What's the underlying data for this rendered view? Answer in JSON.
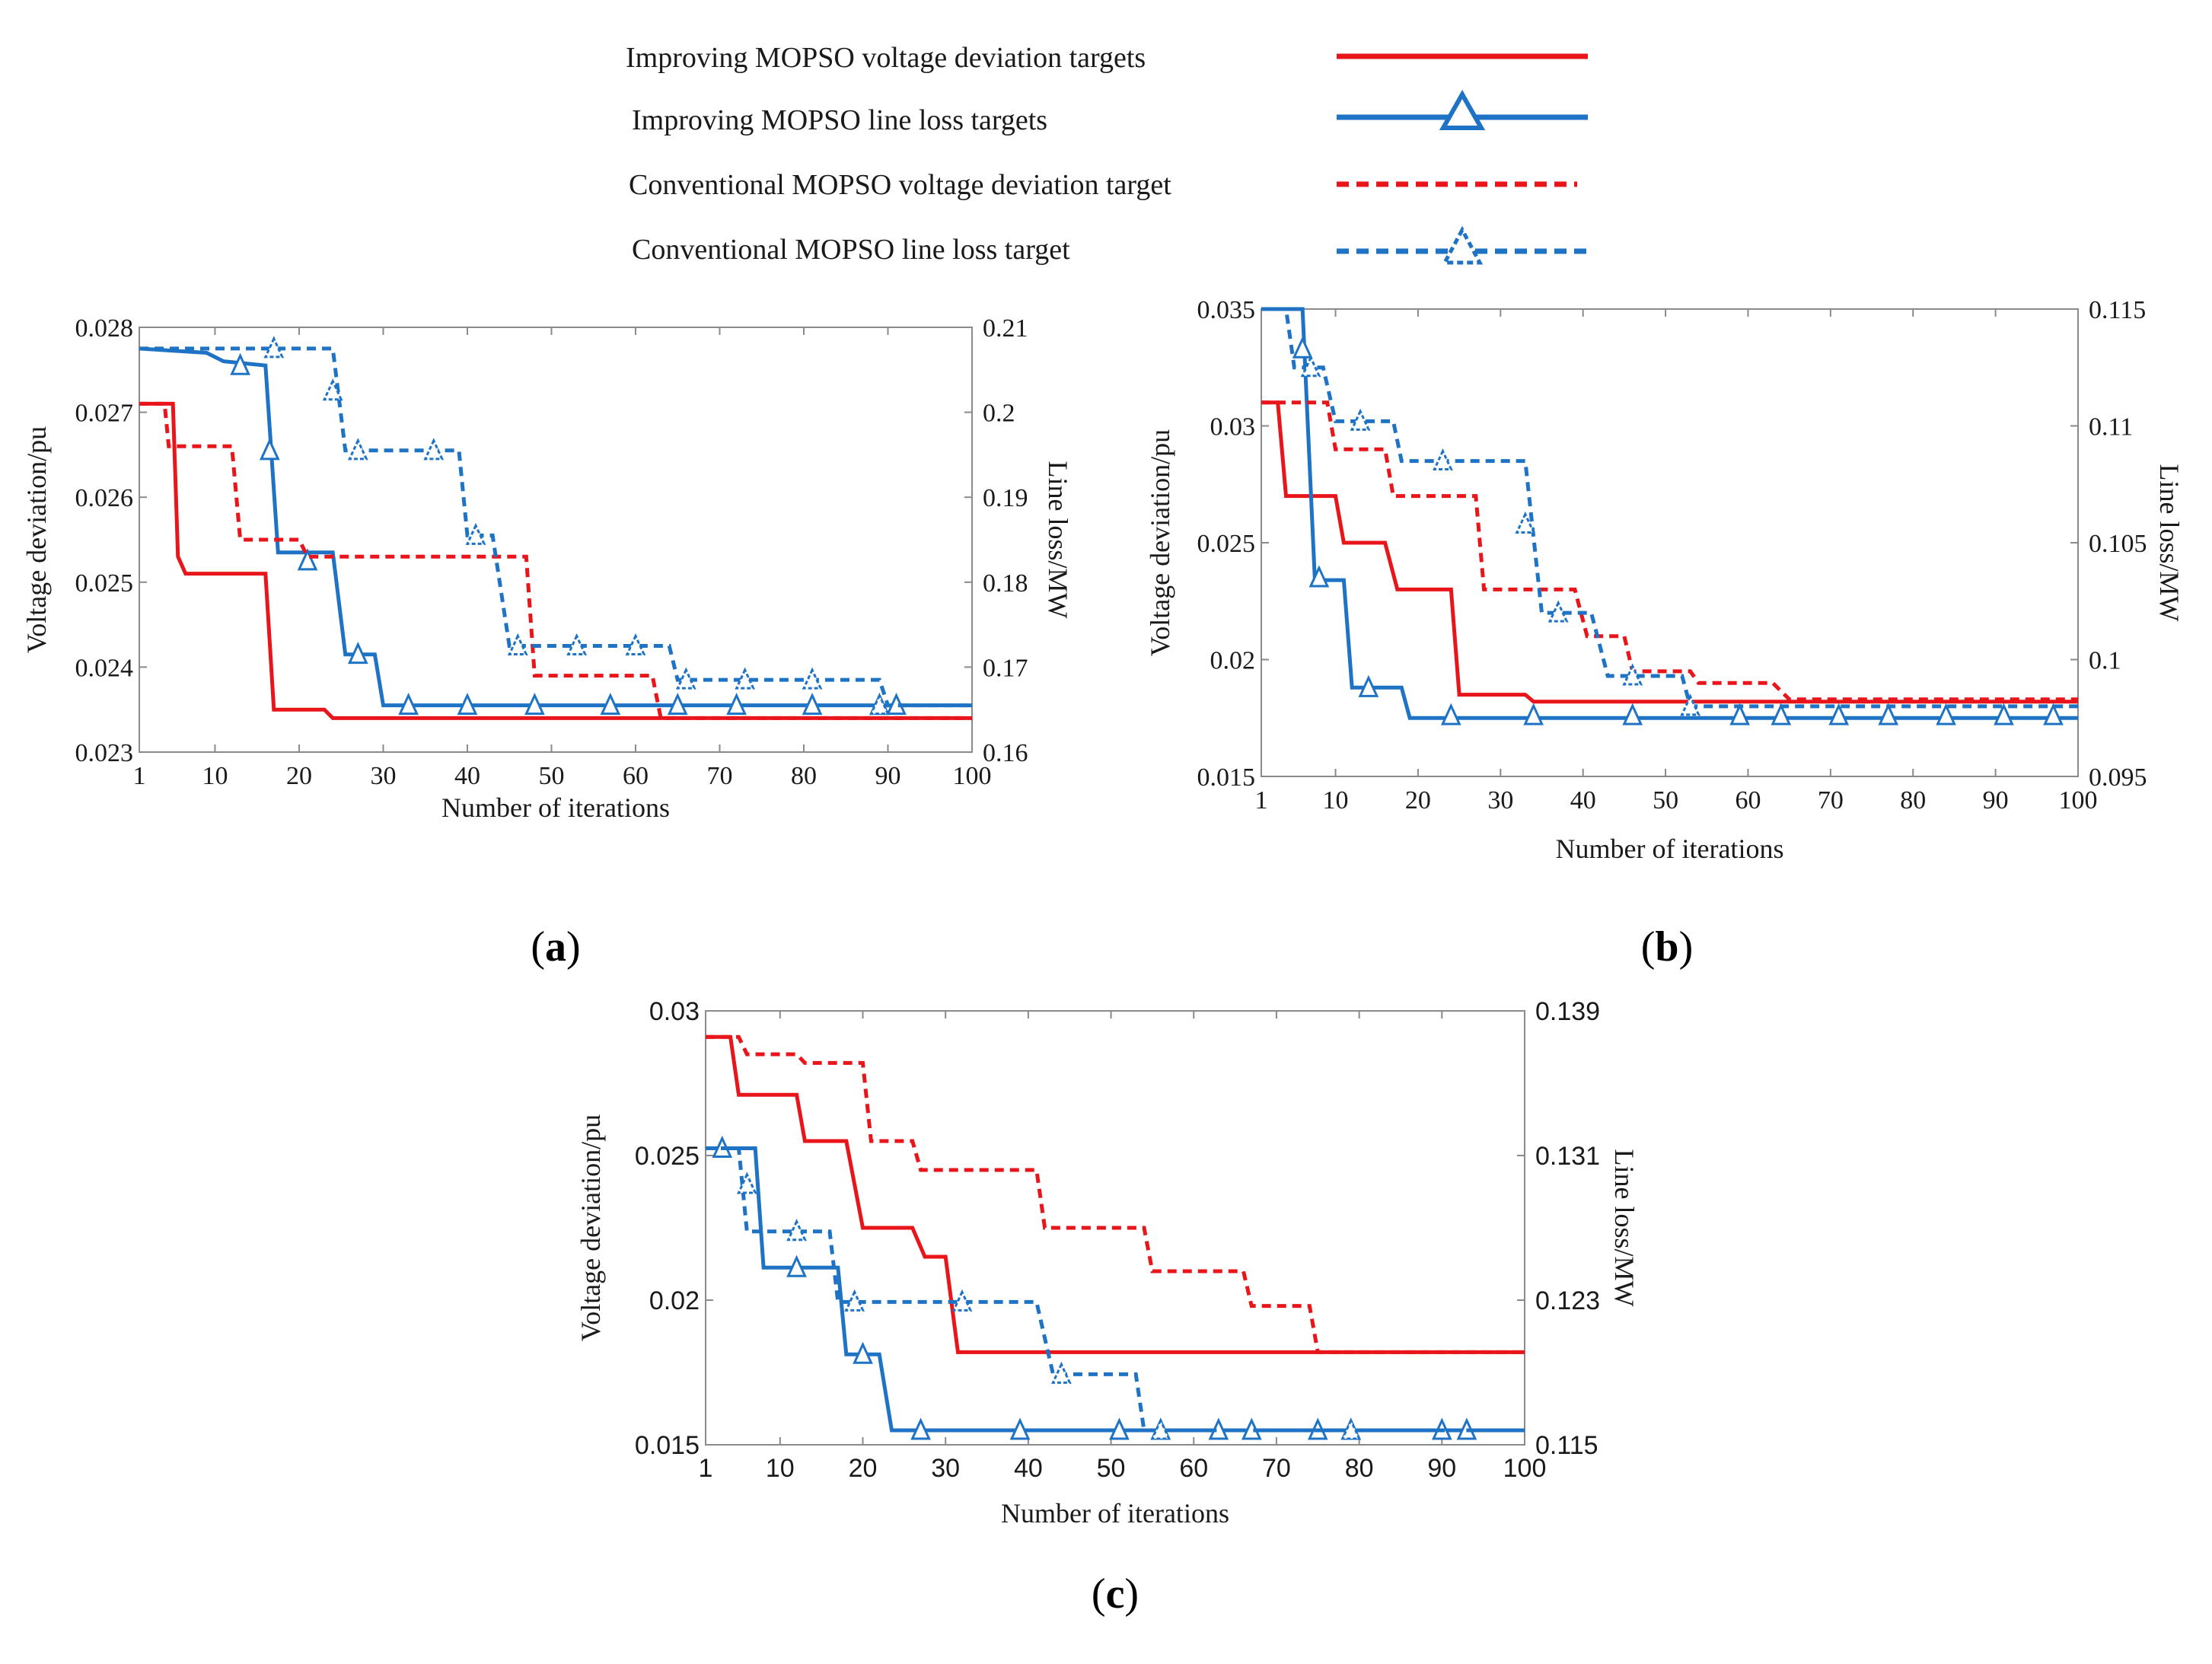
{
  "legend": [
    {
      "label": "Improving MOPSO voltage deviation targets",
      "color": "#e8151b",
      "dash": false,
      "marker": false
    },
    {
      "label": "Improving MOPSO line loss targets",
      "color": "#1f73c4",
      "dash": false,
      "marker": true
    },
    {
      "label": "Conventional MOPSO voltage deviation target",
      "color": "#e8151b",
      "dash": true,
      "marker": false
    },
    {
      "label": "Conventional MOPSO line loss target",
      "color": "#1f73c4",
      "dash": true,
      "marker": true
    }
  ],
  "chart_data": [
    {
      "type": "line",
      "panel": "(a)",
      "panel_letter": "a",
      "xlabel": "Number of iterations",
      "ylabel": "Voltage deviation/pu",
      "y2label": "Line loss/MW",
      "xlim": [
        1,
        100
      ],
      "ylim": [
        0.023,
        0.028
      ],
      "y2lim": [
        0.16,
        0.21
      ],
      "xticks": [
        "1",
        "10",
        "20",
        "30",
        "40",
        "50",
        "60",
        "70",
        "80",
        "90",
        "100"
      ],
      "yticks": [
        "0.023",
        "0.024",
        "0.025",
        "0.026",
        "0.027",
        "0.028"
      ],
      "y2ticks": [
        "0.16",
        "0.17",
        "0.18",
        "0.19",
        "0.2",
        "0.21"
      ],
      "series": [
        {
          "name": "Improving MOPSO voltage deviation targets",
          "axis": "left",
          "color": "#e8151b",
          "dash": false,
          "marker": false,
          "points": [
            [
              1,
              0.0271
            ],
            [
              5,
              0.0271
            ],
            [
              5.6,
              0.0253
            ],
            [
              6.5,
              0.0251
            ],
            [
              16,
              0.0251
            ],
            [
              17,
              0.0235
            ],
            [
              23,
              0.0235
            ],
            [
              24,
              0.0234
            ],
            [
              100,
              0.0234
            ]
          ]
        },
        {
          "name": "Improving MOPSO line loss targets",
          "axis": "right",
          "color": "#1f73c4",
          "dash": false,
          "marker": true,
          "points": [
            [
              1,
              0.2075
            ],
            [
              9,
              0.207
            ],
            [
              11,
              0.206
            ],
            [
              16,
              0.2055
            ],
            [
              17.5,
              0.1835
            ],
            [
              24,
              0.1835
            ],
            [
              25.5,
              0.1715
            ],
            [
              29,
              0.1715
            ],
            [
              30,
              0.1655
            ],
            [
              100,
              0.1655
            ]
          ],
          "markers": [
            [
              13,
              0.2055
            ],
            [
              16.5,
              0.1955
            ],
            [
              21,
              0.1825
            ],
            [
              27,
              0.1715
            ],
            [
              33,
              0.1655
            ],
            [
              40,
              0.1655
            ],
            [
              48,
              0.1655
            ],
            [
              57,
              0.1655
            ],
            [
              65,
              0.1655
            ],
            [
              72,
              0.1655
            ],
            [
              81,
              0.1655
            ],
            [
              89,
              0.1655
            ],
            [
              91,
              0.1655
            ]
          ]
        },
        {
          "name": "Conventional MOPSO voltage deviation target",
          "axis": "left",
          "color": "#e8151b",
          "dash": true,
          "marker": false,
          "points": [
            [
              1,
              0.0271
            ],
            [
              4,
              0.0271
            ],
            [
              4.5,
              0.0266
            ],
            [
              12,
              0.0266
            ],
            [
              13,
              0.0255
            ],
            [
              20,
              0.0255
            ],
            [
              21,
              0.0253
            ],
            [
              47,
              0.0253
            ],
            [
              48,
              0.0239
            ],
            [
              62,
              0.0239
            ],
            [
              63,
              0.0234
            ],
            [
              100,
              0.0234
            ]
          ]
        },
        {
          "name": "Conventional MOPSO line loss target",
          "axis": "right",
          "color": "#1f73c4",
          "dash": true,
          "marker": true,
          "points": [
            [
              1,
              0.2075
            ],
            [
              24,
              0.2075
            ],
            [
              25.5,
              0.1955
            ],
            [
              39,
              0.1955
            ],
            [
              40,
              0.1855
            ],
            [
              43,
              0.1855
            ],
            [
              45,
              0.1725
            ],
            [
              64,
              0.1725
            ],
            [
              65,
              0.1685
            ],
            [
              89,
              0.1685
            ],
            [
              90,
              0.1655
            ],
            [
              100,
              0.1655
            ]
          ],
          "markers": [
            [
              17,
              0.2075
            ],
            [
              24,
              0.2025
            ],
            [
              27,
              0.1955
            ],
            [
              36,
              0.1955
            ],
            [
              41,
              0.1855
            ],
            [
              46,
              0.1725
            ],
            [
              53,
              0.1725
            ],
            [
              60,
              0.1725
            ],
            [
              66,
              0.1685
            ],
            [
              73,
              0.1685
            ],
            [
              81,
              0.1685
            ],
            [
              89,
              0.1655
            ]
          ]
        }
      ]
    },
    {
      "type": "line",
      "panel": "(b)",
      "panel_letter": "b",
      "xlabel": "Number of iterations",
      "ylabel": "Voltage deviation/pu",
      "y2label": "Line loss/MW",
      "xlim": [
        1,
        100
      ],
      "ylim": [
        0.015,
        0.035
      ],
      "y2lim": [
        0.095,
        0.115
      ],
      "xticks": [
        "1",
        "10",
        "20",
        "30",
        "40",
        "50",
        "60",
        "70",
        "80",
        "90",
        "100"
      ],
      "yticks": [
        "0.015",
        "0.02",
        "0.025",
        "0.03",
        "0.035"
      ],
      "y2ticks": [
        "0.095",
        "0.1",
        "0.105",
        "0.11",
        "0.115"
      ],
      "series": [
        {
          "name": "Improving MOPSO voltage deviation targets",
          "axis": "left",
          "color": "#e8151b",
          "dash": false,
          "marker": false,
          "points": [
            [
              1,
              0.031
            ],
            [
              3,
              0.031
            ],
            [
              4,
              0.027
            ],
            [
              10,
              0.027
            ],
            [
              11,
              0.025
            ],
            [
              16,
              0.025
            ],
            [
              17.5,
              0.023
            ],
            [
              24,
              0.023
            ],
            [
              25,
              0.0185
            ],
            [
              33,
              0.0185
            ],
            [
              34,
              0.0182
            ],
            [
              100,
              0.0182
            ]
          ]
        },
        {
          "name": "Improving MOPSO line loss targets",
          "axis": "right",
          "color": "#1f73c4",
          "dash": false,
          "marker": true,
          "points": [
            [
              1,
              0.115
            ],
            [
              6,
              0.115
            ],
            [
              7.5,
              0.1034
            ],
            [
              11,
              0.1034
            ],
            [
              12,
              0.0988
            ],
            [
              18,
              0.0988
            ],
            [
              19,
              0.0975
            ],
            [
              100,
              0.0975
            ]
          ],
          "markers": [
            [
              6,
              0.1133
            ],
            [
              8,
              0.1035
            ],
            [
              14,
              0.0988
            ],
            [
              24,
              0.0976
            ],
            [
              34,
              0.0976
            ],
            [
              46,
              0.0976
            ],
            [
              59,
              0.0976
            ],
            [
              64,
              0.0976
            ],
            [
              71,
              0.0976
            ],
            [
              77,
              0.0976
            ],
            [
              84,
              0.0976
            ],
            [
              91,
              0.0976
            ],
            [
              97,
              0.0976
            ]
          ]
        },
        {
          "name": "Conventional MOPSO voltage deviation target",
          "axis": "left",
          "color": "#e8151b",
          "dash": true,
          "marker": false,
          "points": [
            [
              1,
              0.031
            ],
            [
              9,
              0.031
            ],
            [
              10,
              0.029
            ],
            [
              16,
              0.029
            ],
            [
              17,
              0.027
            ],
            [
              27,
              0.027
            ],
            [
              28,
              0.023
            ],
            [
              39,
              0.023
            ],
            [
              40.5,
              0.021
            ],
            [
              45,
              0.021
            ],
            [
              46,
              0.0195
            ],
            [
              53,
              0.0195
            ],
            [
              54,
              0.019
            ],
            [
              63,
              0.019
            ],
            [
              65,
              0.0183
            ],
            [
              100,
              0.0183
            ]
          ]
        },
        {
          "name": "Conventional MOPSO line loss target",
          "axis": "right",
          "color": "#1f73c4",
          "dash": true,
          "marker": true,
          "points": [
            [
              1,
              0.115
            ],
            [
              4,
              0.115
            ],
            [
              5,
              0.1125
            ],
            [
              8.5,
              0.1125
            ],
            [
              10,
              0.1102
            ],
            [
              17,
              0.1102
            ],
            [
              18,
              0.1085
            ],
            [
              33,
              0.1085
            ],
            [
              35,
              0.102
            ],
            [
              41,
              0.102
            ],
            [
              43,
              0.0993
            ],
            [
              52,
              0.0993
            ],
            [
              53,
              0.098
            ],
            [
              100,
              0.098
            ]
          ],
          "markers": [
            [
              7,
              0.1125
            ],
            [
              13,
              0.1102
            ],
            [
              23,
              0.1085
            ],
            [
              33,
              0.1058
            ],
            [
              37,
              0.102
            ],
            [
              46,
              0.0993
            ],
            [
              53,
              0.098
            ]
          ]
        }
      ]
    },
    {
      "type": "line",
      "panel": "(c)",
      "panel_letter": "c",
      "xlabel": "Number of iterations",
      "ylabel": "Voltage deviation/pu",
      "y2label": "Line loss/MW",
      "xlim": [
        1,
        100
      ],
      "ylim": [
        0.015,
        0.03
      ],
      "y2lim": [
        0.115,
        0.139
      ],
      "xticks": [
        "1",
        "10",
        "20",
        "30",
        "40",
        "50",
        "60",
        "70",
        "80",
        "90",
        "100"
      ],
      "yticks": [
        "0.015",
        "0.02",
        "0.025",
        "0.03"
      ],
      "y2ticks": [
        "0.115",
        "0.123",
        "0.131",
        "0.139"
      ],
      "series": [
        {
          "name": "Improving MOPSO voltage deviation targets",
          "axis": "left",
          "color": "#e8151b",
          "dash": false,
          "marker": false,
          "points": [
            [
              1,
              0.0291
            ],
            [
              4,
              0.0291
            ],
            [
              5,
              0.0271
            ],
            [
              12,
              0.0271
            ],
            [
              13,
              0.0255
            ],
            [
              18,
              0.0255
            ],
            [
              20,
              0.0225
            ],
            [
              26,
              0.0225
            ],
            [
              27.5,
              0.0215
            ],
            [
              30,
              0.0215
            ],
            [
              31.5,
              0.0182
            ],
            [
              100,
              0.0182
            ]
          ]
        },
        {
          "name": "Improving MOPSO line loss targets",
          "axis": "right",
          "color": "#1f73c4",
          "dash": false,
          "marker": true,
          "points": [
            [
              1,
              0.1314
            ],
            [
              7,
              0.1314
            ],
            [
              8,
              0.1248
            ],
            [
              17,
              0.1248
            ],
            [
              18,
              0.12
            ],
            [
              22,
              0.12
            ],
            [
              23.5,
              0.1158
            ],
            [
              100,
              0.1158
            ]
          ],
          "markers": [
            [
              3,
              0.1314
            ],
            [
              12,
              0.1248
            ],
            [
              20,
              0.12
            ],
            [
              27,
              0.1158
            ],
            [
              39,
              0.1158
            ],
            [
              51,
              0.1158
            ],
            [
              56,
              0.1158
            ],
            [
              63,
              0.1158
            ],
            [
              67,
              0.1158
            ],
            [
              75,
              0.1158
            ],
            [
              79,
              0.1158
            ],
            [
              90,
              0.1158
            ],
            [
              93,
              0.1158
            ]
          ]
        },
        {
          "name": "Conventional MOPSO voltage deviation target",
          "axis": "left",
          "color": "#e8151b",
          "dash": true,
          "marker": false,
          "points": [
            [
              1,
              0.0291
            ],
            [
              5,
              0.0291
            ],
            [
              6,
              0.0285
            ],
            [
              12,
              0.0285
            ],
            [
              13,
              0.0282
            ],
            [
              20,
              0.0282
            ],
            [
              21,
              0.0255
            ],
            [
              26,
              0.0255
            ],
            [
              27,
              0.0245
            ],
            [
              41,
              0.0245
            ],
            [
              42,
              0.0225
            ],
            [
              54,
              0.0225
            ],
            [
              55,
              0.021
            ],
            [
              66,
              0.021
            ],
            [
              67,
              0.0198
            ],
            [
              74,
              0.0198
            ],
            [
              75,
              0.0182
            ],
            [
              100,
              0.0182
            ]
          ]
        },
        {
          "name": "Conventional MOPSO line loss target",
          "axis": "right",
          "color": "#1f73c4",
          "dash": true,
          "marker": true,
          "points": [
            [
              1,
              0.1314
            ],
            [
              5,
              0.1314
            ],
            [
              6,
              0.1268
            ],
            [
              16,
              0.1268
            ],
            [
              17,
              0.1229
            ],
            [
              41,
              0.1229
            ],
            [
              43,
              0.1189
            ],
            [
              53,
              0.1189
            ],
            [
              54,
              0.1158
            ],
            [
              100,
              0.1158
            ]
          ],
          "markers": [
            [
              6,
              0.1294
            ],
            [
              12,
              0.1268
            ],
            [
              19,
              0.1229
            ],
            [
              32,
              0.1229
            ],
            [
              44,
              0.1189
            ],
            [
              56,
              0.1158
            ],
            [
              79,
              0.1158
            ]
          ]
        }
      ]
    }
  ]
}
